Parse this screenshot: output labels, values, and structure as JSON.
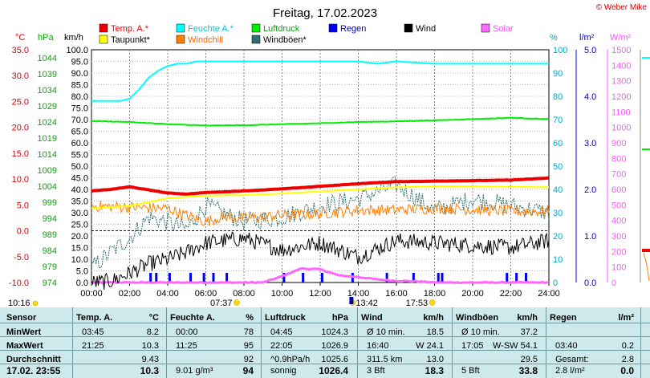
{
  "page": {
    "title": "Freitag, 17.02.2023",
    "credit": "© Weber Mike"
  },
  "chart_data": {
    "type": "line",
    "x_ticks": [
      "00:00",
      "02:00",
      "04:00",
      "06:00",
      "08:00",
      "10:00",
      "12:00",
      "14:00",
      "16:00",
      "18:00",
      "20:00",
      "22:00",
      "24:00"
    ],
    "axes": {
      "temp_c": {
        "unit": "°C",
        "color": "#dd0000",
        "ticks": [
          "35.0",
          "30.0",
          "25.0",
          "20.0",
          "15.0",
          "10.0",
          "5.0",
          "0.0",
          "-5.0",
          "-10.0"
        ],
        "min": -10,
        "max": 35
      },
      "pressure_hpa": {
        "unit": "hPa",
        "color": "#00aa00",
        "ticks": [
          "1044",
          "1039",
          "1034",
          "1029",
          "1024",
          "1019",
          "1014",
          "1009",
          "1004",
          "999",
          "994",
          "989",
          "984",
          "979",
          "974"
        ],
        "min": 974,
        "max": 1046.5
      },
      "wind_kmh": {
        "unit": "km/h",
        "color": "#000000",
        "ticks": [
          "100.0",
          "95.0",
          "90.0",
          "85.0",
          "80.0",
          "75.0",
          "70.0",
          "65.0",
          "60.0",
          "55.0",
          "50.0",
          "45.0",
          "40.0",
          "35.0",
          "30.0",
          "25.0",
          "20.0",
          "15.0",
          "10.0",
          "5.0",
          "0.0"
        ],
        "min": 0,
        "max": 100
      },
      "humidity_pct": {
        "unit": "%",
        "color": "#00aacc",
        "ticks": [
          "100",
          "90",
          "80",
          "70",
          "60",
          "50",
          "40",
          "30",
          "20",
          "10",
          "0"
        ],
        "min": 0,
        "max": 100
      },
      "rain_lm2": {
        "unit": "l/m²",
        "color": "#0000cc",
        "ticks": [
          "5.0",
          "4.0",
          "3.0",
          "2.0",
          "1.0",
          "0.0"
        ],
        "min": 0,
        "max": 5
      },
      "solar_wm2": {
        "unit": "W/m²",
        "color": "#ff55ff",
        "ticks": [
          "1500",
          "1400",
          "1300",
          "1200",
          "1100",
          "1000",
          "900",
          "800",
          "700",
          "600",
          "500",
          "400",
          "300",
          "200",
          "100",
          "0"
        ],
        "min": 0,
        "max": 1500
      }
    },
    "legend": [
      {
        "name": "Temp. A.*",
        "color": "#ee0000"
      },
      {
        "name": "Feuchte A.*",
        "color": "#00ffff"
      },
      {
        "name": "Luftdruck",
        "color": "#00ee00"
      },
      {
        "name": "Regen",
        "color": "#0000ee"
      },
      {
        "name": "Wind",
        "color": "#000000"
      },
      {
        "name": "Solar",
        "color": "#ff66ff"
      },
      {
        "name": "Taupunkt*",
        "color": "#ffff00"
      },
      {
        "name": "Windchill",
        "color": "#ff8000"
      },
      {
        "name": "Windböen*",
        "color": "#2f6f6f"
      }
    ],
    "series": {
      "temp": {
        "hours": [
          0,
          1,
          2,
          3,
          4,
          5,
          6,
          8,
          10,
          12,
          14,
          16,
          18,
          20,
          22,
          24
        ],
        "values": [
          7.7,
          8.0,
          8.5,
          7.9,
          7.3,
          7.1,
          7.4,
          7.7,
          8.1,
          8.6,
          9.1,
          9.5,
          9.6,
          9.7,
          9.8,
          10.2
        ]
      },
      "dewpoint": {
        "hours": [
          0,
          2,
          4,
          6,
          8,
          10,
          12,
          14,
          16,
          18,
          20,
          22,
          24
        ],
        "values": [
          4.3,
          4.8,
          6.3,
          6.8,
          6.9,
          7.2,
          7.6,
          8.0,
          8.4,
          8.6,
          8.6,
          8.5,
          8.4
        ]
      },
      "humidity": {
        "hours": [
          0,
          1,
          1.5,
          2,
          2.5,
          3,
          3.5,
          4,
          4.5,
          5,
          5.5,
          6,
          8,
          12,
          14,
          15,
          16,
          18,
          20,
          24
        ],
        "values": [
          78,
          78,
          78,
          79,
          83,
          88,
          91,
          93,
          94,
          94,
          95,
          95,
          95,
          95,
          95,
          94,
          95,
          94,
          94,
          94
        ]
      },
      "pressure": {
        "hours": [
          0,
          2,
          4,
          6,
          8,
          10,
          12,
          14,
          16,
          18,
          20,
          22,
          24
        ],
        "values": [
          1024.3,
          1024.0,
          1023.3,
          1022.9,
          1023.0,
          1023.3,
          1023.6,
          1024.0,
          1024.2,
          1024.5,
          1024.9,
          1025.3,
          1024.9
        ]
      },
      "wind": {
        "hours": [
          0,
          1,
          2,
          3,
          4,
          5,
          6,
          8,
          10,
          12,
          14,
          16,
          18,
          20,
          22,
          24
        ],
        "values": [
          0,
          0.5,
          4,
          8,
          10,
          13,
          17,
          19,
          14,
          17,
          11,
          18,
          17,
          16,
          15,
          18
        ]
      },
      "gust": {
        "hours": [
          0,
          1,
          2,
          3,
          4,
          5,
          6,
          8,
          10,
          12,
          14,
          16,
          18,
          20,
          22,
          24
        ],
        "values": [
          6,
          13,
          19,
          28,
          26,
          23,
          33,
          26,
          28,
          33,
          36,
          42,
          31,
          36,
          33,
          30
        ]
      },
      "windchill": {
        "hours": [
          0,
          2,
          3,
          4,
          5,
          6,
          7,
          8,
          10,
          12,
          14,
          16,
          18,
          20,
          22,
          24
        ],
        "values": [
          4.8,
          4.6,
          4.4,
          4.3,
          2.9,
          1.8,
          2.8,
          2.4,
          3.0,
          3.3,
          4.0,
          4.0,
          4.4,
          4.1,
          3.8,
          3.8
        ]
      },
      "solar": {
        "hours": [
          0,
          9,
          10,
          11,
          12,
          13,
          14,
          15,
          16,
          17,
          18,
          24
        ],
        "values": [
          0,
          0,
          40,
          90,
          85,
          45,
          35,
          20,
          10,
          8,
          0,
          0
        ]
      },
      "rain_hours": [
        3.1,
        3.4,
        4.1,
        5.2,
        5.9,
        6.4,
        7.1,
        10.1,
        11.1,
        12.1,
        13.7,
        15.5,
        16.9,
        18.2,
        18.4,
        21.8,
        22.3,
        22.8
      ]
    },
    "dashed_zero_line": {
      "axis": "temp_c",
      "value": 0
    },
    "sun_markers": [
      {
        "label": "10:16",
        "hour": 0
      },
      {
        "label": "07:37",
        "hour": 7.62
      },
      {
        "label": "13:42",
        "hour": 13.7
      },
      {
        "label": "17:53",
        "hour": 17.88
      }
    ]
  },
  "stats": {
    "row_labels": [
      "Sensor",
      "MinWert",
      "MaxWert",
      "Durchschnitt",
      "17.02. 23:55"
    ],
    "temp": {
      "header": "Temp. A.",
      "unit": "°C",
      "rows": [
        [
          "03:45",
          "8.2"
        ],
        [
          "21:25",
          "10.3"
        ],
        [
          "",
          "9.43"
        ],
        [
          "",
          "10.3"
        ]
      ]
    },
    "humidity": {
      "header": "Feuchte A.",
      "unit": "%",
      "rows": [
        [
          "00:00",
          "78"
        ],
        [
          "11:25",
          "95"
        ],
        [
          "",
          "92"
        ],
        [
          "9.01 g/m³",
          "94"
        ]
      ]
    },
    "pressure": {
      "header": "Luftdruck",
      "unit": "hPa",
      "rows": [
        [
          "04:45",
          "1024.3"
        ],
        [
          "22:05",
          "1026.9"
        ],
        [
          "^0.9hPa/h",
          "1025.6"
        ],
        [
          "sonnig",
          "1026.4"
        ]
      ]
    },
    "wind": {
      "header": "Wind",
      "unit": "km/h",
      "rows": [
        [
          "Ø 10 min.",
          "18.5"
        ],
        [
          "16:40",
          "W 24.1"
        ],
        [
          "311.5 km",
          "13.0"
        ],
        [
          "3 Bft",
          "18.3"
        ]
      ]
    },
    "gust": {
      "header": "Windböen",
      "unit": "km/h",
      "rows": [
        [
          "Ø 10 min.",
          "37.2"
        ],
        [
          "17:05",
          "W-SW 54.1"
        ],
        [
          "",
          "29.5"
        ],
        [
          "5 Bft",
          "33.8"
        ]
      ]
    },
    "rain": {
      "header": "Regen",
      "unit": "l/m²",
      "rows": [
        [
          "",
          ""
        ],
        [
          "03:40",
          "0.2"
        ],
        [
          "Gesamt:",
          "2.8"
        ],
        [
          "2.8 l/m²",
          "0.0"
        ]
      ]
    }
  }
}
